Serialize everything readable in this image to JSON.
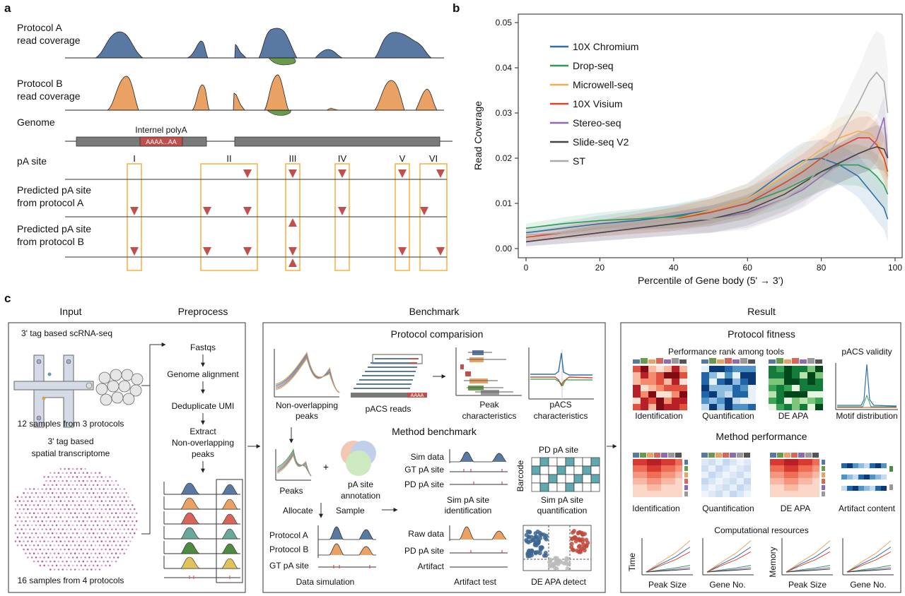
{
  "panel_labels": {
    "a": "a",
    "b": "b",
    "c": "c"
  },
  "panel_a": {
    "row_labels": {
      "protocol_a_line1": "Protocol A",
      "protocol_a_line2": "read coverage",
      "protocol_b_line1": "Protocol B",
      "protocol_b_line2": "read coverage",
      "genome": "Genome",
      "pa_site": "pA site",
      "pred_a_line1": "Predicted pA site",
      "pred_a_line2": "from protocol A",
      "pred_b_line1": "Predicted pA site",
      "pred_b_line2": "from protocol B"
    },
    "internal_polya_label": "Internel polyA",
    "polya_seq": "AAAA...AA",
    "site_labels": [
      "I",
      "II",
      "III",
      "IV",
      "V",
      "VI"
    ],
    "colors": {
      "protocol_a": "#5a79a2",
      "protocol_b": "#e9a264",
      "negative": "#6a9a4e",
      "site_marker": "#c0504d",
      "site_box": "#f5b041",
      "genome_bar": "#7a7a7a"
    }
  },
  "panel_c": {
    "sections": {
      "input": "Input",
      "preprocess": "Preprocess",
      "benchmark": "Benchmark",
      "result": "Result"
    },
    "input": {
      "scrna_title": "3' tag based scRNA-seq",
      "scrna_samples": "12 samples from 3 protocols",
      "spatial_line1": "3' tag based",
      "spatial_line2": "spatial transcriptome",
      "spatial_samples": "16 samples from 4 protocols"
    },
    "preprocess": {
      "step1": "Fastqs",
      "step2": "Genome alignment",
      "step3": "Deduplicate UMI",
      "step4_line1": "Extract",
      "step4_line2": "Non-overlapping",
      "step4_line3": "peaks"
    },
    "benchmark": {
      "protocol_comparison_title": "Protocol comparision",
      "nonoverlap_line1": "Non-overlapping",
      "nonoverlap_line2": "peaks",
      "pacs_reads": "pACS reads",
      "peak_char_line1": "Peak",
      "peak_char_line2": "characteristics",
      "pacs_char_line1": "pACS",
      "pacs_char_line2": "characteristics",
      "method_benchmark_title": "Method benchmark",
      "peaks": "Peaks",
      "plus": "+",
      "annotation_line1": "pA site",
      "annotation_line2": "annotation",
      "allocate": "Allocate",
      "sample": "Sample",
      "sim_data": "Sim data",
      "gt_pa_site": "GT pA site",
      "pd_pa_site": "PD pA site",
      "sim_ident_line1": "Sim pA site",
      "sim_ident_line2": "identification",
      "pd_pa_site_title": "PD pA site",
      "barcode": "Barcode",
      "sim_quant_line1": "Sim pA site",
      "sim_quant_line2": "quantification",
      "protocol_a": "Protocol A",
      "protocol_b": "Protocol B",
      "gt_pa_site2": "GT pA site",
      "data_simulation": "Data simulation",
      "raw_data": "Raw data",
      "pd_pa_site2": "PD pA site",
      "artifact": "Artifact",
      "artifact_test": "Artifact test",
      "de_apa_detect": "DE APA detect",
      "polya_label": "AAAA"
    },
    "result": {
      "protocol_fitness_title": "Protocol fitness",
      "performance_rank": "Performance rank among tools",
      "pacs_validity": "pACS validity",
      "identification": "Identification",
      "quantification": "Quantification",
      "de_apa": "DE APA",
      "motif_distribution": "Motif distribution",
      "method_performance_title": "Method performance",
      "identification2": "Identification",
      "quantification2": "Quantification",
      "de_apa2": "DE APA",
      "artifact_content": "Artifact content",
      "computational_resources": "Computational resources",
      "time": "Time",
      "memory": "Memory",
      "peak_size": "Peak Size",
      "gene_no": "Gene No.",
      "peak_size2": "Peak Size",
      "gene_no2": "Gene No."
    }
  },
  "chart_data": {
    "type": "line",
    "title": "",
    "xlabel": "Percentile of Gene body (5' → 3')",
    "ylabel": "Read Coverage",
    "xlim": [
      0,
      100
    ],
    "ylim": [
      0.0,
      0.05
    ],
    "x_ticks": [
      "0",
      "20",
      "40",
      "60",
      "80",
      "100"
    ],
    "y_ticks": [
      "0.00",
      "0.01",
      "0.02",
      "0.03",
      "0.04",
      "0.05"
    ],
    "legend_placement": "top-left",
    "grid": false,
    "x": [
      0,
      10,
      20,
      30,
      40,
      50,
      60,
      70,
      75,
      80,
      85,
      90,
      93,
      95,
      97,
      98
    ],
    "series": [
      {
        "name": "10X Chromium",
        "color": "#2f6ea8",
        "values": [
          0.0035,
          0.0045,
          0.0055,
          0.0062,
          0.0072,
          0.0085,
          0.011,
          0.017,
          0.0195,
          0.02,
          0.0185,
          0.016,
          0.013,
          0.011,
          0.009,
          0.0065
        ]
      },
      {
        "name": "Drop-seq",
        "color": "#2e9a55",
        "values": [
          0.0045,
          0.0055,
          0.0062,
          0.0066,
          0.007,
          0.008,
          0.01,
          0.013,
          0.015,
          0.017,
          0.0185,
          0.0185,
          0.0175,
          0.016,
          0.014,
          0.012
        ]
      },
      {
        "name": "Microwell-seq",
        "color": "#f0b050",
        "values": [
          0.0025,
          0.0035,
          0.0045,
          0.0055,
          0.0065,
          0.0085,
          0.011,
          0.016,
          0.019,
          0.022,
          0.0245,
          0.026,
          0.0255,
          0.024,
          0.02,
          0.016
        ]
      },
      {
        "name": "10X Visium",
        "color": "#d9452b",
        "values": [
          0.0025,
          0.0035,
          0.0045,
          0.0055,
          0.0065,
          0.008,
          0.01,
          0.0145,
          0.017,
          0.02,
          0.0225,
          0.0245,
          0.0245,
          0.023,
          0.02,
          0.017
        ]
      },
      {
        "name": "Stereo-seq",
        "color": "#8e6bb0",
        "values": [
          0.0015,
          0.0025,
          0.0035,
          0.0045,
          0.0055,
          0.0065,
          0.008,
          0.011,
          0.013,
          0.016,
          0.019,
          0.021,
          0.022,
          0.024,
          0.029,
          0.02
        ]
      },
      {
        "name": "Slide-seq V2",
        "color": "#444444",
        "values": [
          0.0015,
          0.0025,
          0.0035,
          0.0045,
          0.0055,
          0.0065,
          0.0085,
          0.012,
          0.0145,
          0.017,
          0.019,
          0.021,
          0.022,
          0.0225,
          0.022,
          0.02
        ]
      },
      {
        "name": "ST",
        "color": "#aaaaaa",
        "values": [
          0.003,
          0.0035,
          0.0045,
          0.0055,
          0.0065,
          0.0065,
          0.0075,
          0.011,
          0.0135,
          0.018,
          0.025,
          0.032,
          0.037,
          0.039,
          0.037,
          0.03
        ]
      }
    ]
  }
}
